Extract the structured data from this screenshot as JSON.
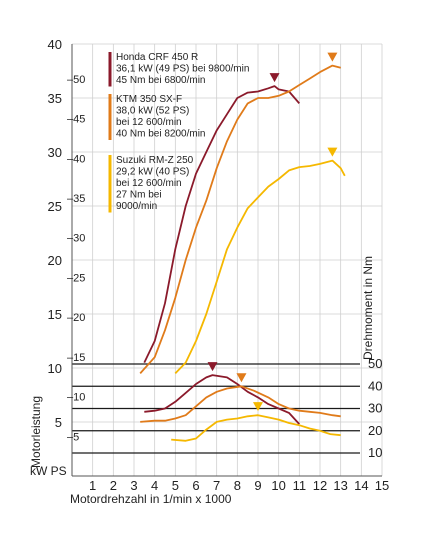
{
  "chart_data": {
    "type": "line",
    "title": "",
    "x_axis": {
      "label": "Motordrehzahl in 1/min x 1000",
      "range": [
        0,
        15
      ],
      "ticks": [
        "1",
        "2",
        "3",
        "4",
        "5",
        "6",
        "7",
        "8",
        "9",
        "10",
        "11",
        "12",
        "13",
        "14",
        "15"
      ]
    },
    "power_axis": {
      "label": "Motorleistung",
      "units_label": "kW PS",
      "kw_range": [
        0,
        40
      ],
      "kw_ticks": [
        "5",
        "10",
        "15",
        "20",
        "25",
        "30",
        "35",
        "40"
      ],
      "ps_ticks": [
        "–5",
        "–10",
        "–15",
        "–20",
        "–25",
        "–30",
        "–35",
        "–40",
        "–45",
        "–50"
      ]
    },
    "torque_axis": {
      "label": "Drehmoment in Nm",
      "range": [
        0,
        50
      ],
      "ticks": [
        "10",
        "20",
        "30",
        "40",
        "50"
      ]
    },
    "series": [
      {
        "name": "Honda CRF 450 R",
        "color": "#8b1a2b",
        "legend_lines": [
          "Honda CRF 450 R",
          "36,1 kW (49 PS) bei 9800/min",
          "45 Nm bei 6800/min"
        ],
        "power_kw": [
          [
            3.5,
            10.5
          ],
          [
            4.0,
            12.5
          ],
          [
            4.5,
            16.0
          ],
          [
            5.0,
            21.0
          ],
          [
            5.5,
            25.0
          ],
          [
            6.0,
            28.0
          ],
          [
            6.5,
            30.0
          ],
          [
            7.0,
            32.0
          ],
          [
            7.5,
            33.5
          ],
          [
            8.0,
            35.0
          ],
          [
            8.5,
            35.5
          ],
          [
            9.0,
            35.6
          ],
          [
            9.5,
            35.9
          ],
          [
            9.8,
            36.1
          ],
          [
            10.0,
            35.8
          ],
          [
            10.5,
            35.6
          ],
          [
            11.0,
            34.5
          ]
        ],
        "torque_nm": [
          [
            3.5,
            28.5
          ],
          [
            4.0,
            29.0
          ],
          [
            4.5,
            30.0
          ],
          [
            5.0,
            33.0
          ],
          [
            5.5,
            37.0
          ],
          [
            6.0,
            41.0
          ],
          [
            6.5,
            44.0
          ],
          [
            6.8,
            45.0
          ],
          [
            7.5,
            44.0
          ],
          [
            8.0,
            41.0
          ],
          [
            8.5,
            37.5
          ],
          [
            9.0,
            35.0
          ],
          [
            9.5,
            32.0
          ],
          [
            10.0,
            30.0
          ],
          [
            10.5,
            28.0
          ],
          [
            11.0,
            23.0
          ]
        ],
        "power_peak": [
          9.8,
          36.1
        ],
        "torque_peak": [
          6.8,
          45.0
        ]
      },
      {
        "name": "KTM 350 SX-F",
        "color": "#e07b1a",
        "legend_lines": [
          "KTM 350 SX-F",
          "38,0 kW (52 PS)",
          "bei 12 600/min",
          "40 Nm bei 8200/min"
        ],
        "power_kw": [
          [
            3.3,
            9.5
          ],
          [
            4.0,
            11.0
          ],
          [
            4.5,
            13.5
          ],
          [
            5.0,
            16.5
          ],
          [
            5.5,
            20.0
          ],
          [
            6.0,
            23.0
          ],
          [
            6.5,
            25.5
          ],
          [
            7.0,
            28.5
          ],
          [
            7.5,
            31.0
          ],
          [
            8.0,
            33.0
          ],
          [
            8.5,
            34.5
          ],
          [
            9.0,
            35.0
          ],
          [
            9.5,
            35.0
          ],
          [
            10.0,
            35.2
          ],
          [
            10.5,
            35.6
          ],
          [
            11.0,
            36.2
          ],
          [
            11.5,
            36.8
          ],
          [
            12.0,
            37.4
          ],
          [
            12.6,
            38.0
          ],
          [
            13.0,
            37.8
          ]
        ],
        "torque_nm": [
          [
            3.3,
            24.0
          ],
          [
            4.0,
            24.5
          ],
          [
            4.5,
            24.5
          ],
          [
            5.0,
            25.5
          ],
          [
            5.5,
            27.0
          ],
          [
            6.0,
            31.0
          ],
          [
            6.5,
            35.0
          ],
          [
            7.0,
            37.5
          ],
          [
            7.5,
            39.0
          ],
          [
            8.2,
            40.0
          ],
          [
            8.8,
            38.0
          ],
          [
            9.5,
            35.0
          ],
          [
            10.0,
            32.0
          ],
          [
            10.5,
            30.0
          ],
          [
            11.0,
            29.0
          ],
          [
            11.5,
            28.5
          ],
          [
            12.0,
            28.0
          ],
          [
            12.6,
            27.0
          ],
          [
            13.0,
            26.5
          ]
        ],
        "power_peak": [
          12.6,
          38.0
        ],
        "torque_peak": [
          8.2,
          40.0
        ]
      },
      {
        "name": "Suzuki RM-Z 250",
        "color": "#f5b800",
        "legend_lines": [
          "Suzuki RM-Z 250",
          "29,2 kW (40 PS)",
          "bei 12 600/min",
          "27 Nm bei",
          "9000/min"
        ],
        "power_kw": [
          [
            5.0,
            9.5
          ],
          [
            5.5,
            10.5
          ],
          [
            6.0,
            12.5
          ],
          [
            6.5,
            15.0
          ],
          [
            7.0,
            18.0
          ],
          [
            7.5,
            21.0
          ],
          [
            8.0,
            23.0
          ],
          [
            8.5,
            24.8
          ],
          [
            9.0,
            25.8
          ],
          [
            9.5,
            26.8
          ],
          [
            10.0,
            27.5
          ],
          [
            10.5,
            28.3
          ],
          [
            11.0,
            28.6
          ],
          [
            11.5,
            28.7
          ],
          [
            12.0,
            28.9
          ],
          [
            12.6,
            29.2
          ],
          [
            13.0,
            28.5
          ],
          [
            13.2,
            27.8
          ]
        ],
        "torque_nm": [
          [
            4.8,
            16.0
          ],
          [
            5.5,
            15.5
          ],
          [
            6.0,
            16.5
          ],
          [
            6.5,
            20.5
          ],
          [
            7.0,
            24.0
          ],
          [
            7.5,
            25.0
          ],
          [
            8.0,
            25.5
          ],
          [
            8.5,
            26.5
          ],
          [
            9.0,
            27.0
          ],
          [
            9.5,
            26.0
          ],
          [
            10.0,
            25.0
          ],
          [
            10.5,
            23.5
          ],
          [
            11.0,
            22.5
          ],
          [
            11.5,
            21.0
          ],
          [
            12.0,
            20.0
          ],
          [
            12.5,
            18.5
          ],
          [
            13.0,
            18.0
          ]
        ],
        "power_peak": [
          12.6,
          29.2
        ],
        "torque_peak": [
          9.0,
          27.0
        ]
      }
    ],
    "grid": {
      "vertical": true,
      "horizontal": true
    }
  }
}
